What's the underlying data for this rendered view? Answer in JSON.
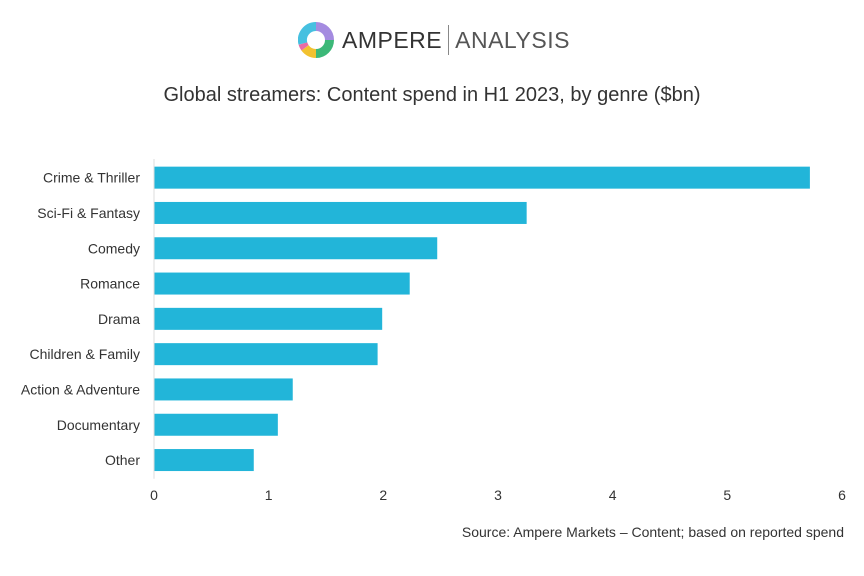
{
  "logo": {
    "brand": "AMPERE",
    "sub": "ANALYSIS"
  },
  "chart_data": {
    "type": "bar",
    "orientation": "horizontal",
    "title": "Global streamers: Content spend in H1 2023, by genre ($bn)",
    "categories": [
      "Crime & Thriller",
      "Sci-Fi & Fantasy",
      "Comedy",
      "Romance",
      "Drama",
      "Children & Family",
      "Action & Adventure",
      "Documentary",
      "Other"
    ],
    "values": [
      5.72,
      3.25,
      2.47,
      2.23,
      1.99,
      1.95,
      1.21,
      1.08,
      0.87
    ],
    "xlim": [
      0,
      6
    ],
    "xticks": [
      0,
      1,
      2,
      3,
      4,
      5,
      6
    ],
    "grid": false,
    "bar_color": "#22b5d9",
    "source": "Source: Ampere Markets – Content; based on reported spend"
  }
}
